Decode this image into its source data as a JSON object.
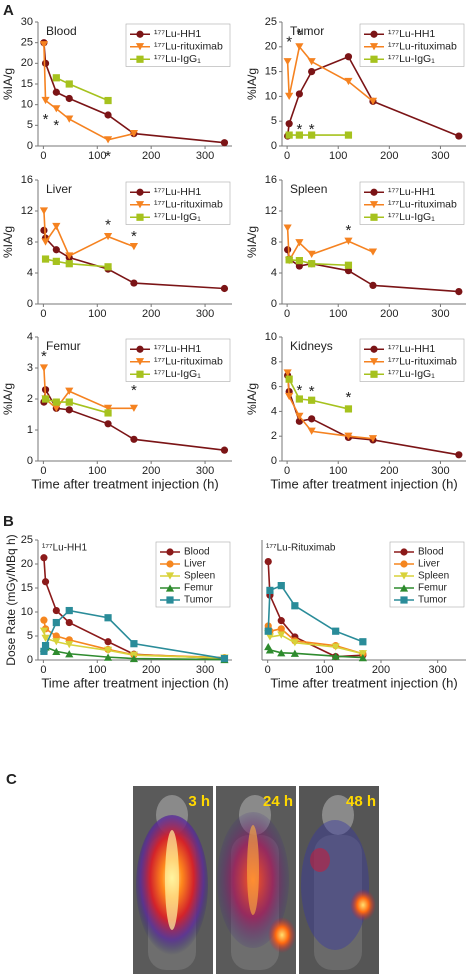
{
  "panel_labels": [
    "A",
    "B",
    "C"
  ],
  "image_labels": [
    "3 h",
    "24 h",
    "48 h"
  ],
  "chart_data": [
    {
      "type": "line",
      "title": "Blood",
      "ylabel": "%IA/g",
      "x": [
        1,
        4,
        24,
        48,
        120,
        168,
        336
      ],
      "xlim": [
        -10,
        350
      ],
      "xticks": [
        0,
        100,
        200,
        300
      ],
      "ylim": [
        0,
        30
      ],
      "yticks": [
        0,
        5,
        10,
        15,
        20,
        25,
        30
      ],
      "series": [
        {
          "name": "¹⁷⁷Lu-HH1",
          "color": "#7b1416",
          "marker": "circle",
          "values": [
            25,
            20,
            13,
            11.5,
            7.5,
            3,
            0.8
          ]
        },
        {
          "name": "¹⁷⁷Lu-rituximab",
          "color": "#f58220",
          "marker": "triangle-down",
          "values": [
            24.5,
            11,
            9,
            6.5,
            1.5,
            3,
            null
          ]
        },
        {
          "name": "¹⁷⁷Lu-IgG₁",
          "color": "#a6c21e",
          "marker": "square",
          "values": [
            null,
            null,
            16.5,
            15,
            11,
            null,
            null
          ]
        }
      ],
      "annotations": [
        {
          "text": "*",
          "x": 4,
          "y": 7
        },
        {
          "text": "*",
          "x": 24,
          "y": 5.5
        },
        {
          "text": "*",
          "x": 120,
          "y": -2
        }
      ]
    },
    {
      "type": "line",
      "title": "Tumor",
      "ylabel": "%IA/g",
      "x": [
        1,
        4,
        24,
        48,
        120,
        168,
        336
      ],
      "xlim": [
        -10,
        350
      ],
      "xticks": [
        0,
        100,
        200,
        300
      ],
      "ylim": [
        0,
        25
      ],
      "yticks": [
        0,
        5,
        10,
        15,
        20,
        25
      ],
      "series": [
        {
          "name": "¹⁷⁷Lu-HH1",
          "color": "#7b1416",
          "marker": "circle",
          "values": [
            2,
            4.5,
            10.5,
            15,
            18,
            9,
            2
          ]
        },
        {
          "name": "¹⁷⁷Lu-rituximab",
          "color": "#f58220",
          "marker": "triangle-down",
          "values": [
            17,
            10,
            20,
            17,
            13,
            9,
            null
          ]
        },
        {
          "name": "¹⁷⁷Lu-IgG₁",
          "color": "#a6c21e",
          "marker": "square",
          "values": [
            null,
            2.2,
            2.2,
            2.2,
            2.2,
            null,
            null
          ]
        }
      ],
      "annotations": [
        {
          "text": "*",
          "x": 4,
          "y": 21.5
        },
        {
          "text": "*",
          "x": 24,
          "y": 23
        },
        {
          "text": "*",
          "x": 24,
          "y": 3.8
        },
        {
          "text": "*",
          "x": 48,
          "y": 3.8
        }
      ]
    },
    {
      "type": "line",
      "title": "Liver",
      "ylabel": "%IA/g",
      "x": [
        1,
        4,
        24,
        48,
        120,
        168,
        336
      ],
      "xlim": [
        -10,
        350
      ],
      "xticks": [
        0,
        100,
        200,
        300
      ],
      "ylim": [
        0,
        16
      ],
      "yticks": [
        0,
        4,
        8,
        12,
        16
      ],
      "series": [
        {
          "name": "¹⁷⁷Lu-HH1",
          "color": "#7b1416",
          "marker": "circle",
          "values": [
            9.5,
            8.5,
            7,
            6,
            4.5,
            2.7,
            2
          ]
        },
        {
          "name": "¹⁷⁷Lu-rituximab",
          "color": "#f58220",
          "marker": "triangle-down",
          "values": [
            12,
            8,
            10,
            6.2,
            8.7,
            7.4,
            null
          ]
        },
        {
          "name": "¹⁷⁷Lu-IgG₁",
          "color": "#a6c21e",
          "marker": "square",
          "values": [
            null,
            5.8,
            5.5,
            5.2,
            4.8,
            null,
            null
          ]
        }
      ],
      "annotations": [
        {
          "text": "*",
          "x": 120,
          "y": 10.5
        },
        {
          "text": "*",
          "x": 168,
          "y": 9
        }
      ]
    },
    {
      "type": "line",
      "title": "Spleen",
      "ylabel": "%IA/g",
      "x": [
        1,
        4,
        24,
        48,
        120,
        168,
        336
      ],
      "xlim": [
        -10,
        350
      ],
      "xticks": [
        0,
        100,
        200,
        300
      ],
      "ylim": [
        0,
        16
      ],
      "yticks": [
        0,
        4,
        8,
        12,
        16
      ],
      "series": [
        {
          "name": "¹⁷⁷Lu-HH1",
          "color": "#7b1416",
          "marker": "circle",
          "values": [
            7,
            5.8,
            4.9,
            5.2,
            4.3,
            2.4,
            1.6
          ]
        },
        {
          "name": "¹⁷⁷Lu-rituximab",
          "color": "#f58220",
          "marker": "triangle-down",
          "values": [
            9.8,
            5.6,
            7.9,
            6.4,
            8.1,
            6.7,
            null
          ]
        },
        {
          "name": "¹⁷⁷Lu-IgG₁",
          "color": "#a6c21e",
          "marker": "square",
          "values": [
            null,
            5.7,
            5.6,
            5.2,
            5,
            null,
            null
          ]
        }
      ],
      "annotations": [
        {
          "text": "*",
          "x": 120,
          "y": 9.8
        }
      ]
    },
    {
      "type": "line",
      "title": "Femur",
      "ylabel": "%IA/g",
      "xlabel": "Time after treatment injection (h)",
      "x": [
        1,
        4,
        24,
        48,
        120,
        168,
        336
      ],
      "xlim": [
        -10,
        350
      ],
      "xticks": [
        0,
        100,
        200,
        300
      ],
      "ylim": [
        0,
        4
      ],
      "yticks": [
        0,
        1,
        2,
        3,
        4
      ],
      "series": [
        {
          "name": "¹⁷⁷Lu-HH1",
          "color": "#7b1416",
          "marker": "circle",
          "values": [
            1.9,
            2.3,
            1.7,
            1.65,
            1.2,
            0.7,
            0.35
          ]
        },
        {
          "name": "¹⁷⁷Lu-rituximab",
          "color": "#f58220",
          "marker": "triangle-down",
          "values": [
            3,
            2,
            1.7,
            2.25,
            1.7,
            1.7,
            null
          ]
        },
        {
          "name": "¹⁷⁷Lu-IgG₁",
          "color": "#a6c21e",
          "marker": "square",
          "values": [
            null,
            2,
            1.9,
            1.9,
            1.55,
            null,
            null
          ]
        }
      ],
      "annotations": [
        {
          "text": "*",
          "x": 1,
          "y": 3.45
        },
        {
          "text": "*",
          "x": 168,
          "y": 2.35
        }
      ]
    },
    {
      "type": "line",
      "title": "Kidneys",
      "ylabel": "%IA/g",
      "xlabel": "Time after treatment injection (h)",
      "x": [
        1,
        4,
        24,
        48,
        120,
        168,
        336
      ],
      "xlim": [
        -10,
        350
      ],
      "xticks": [
        0,
        100,
        200,
        300
      ],
      "ylim": [
        0,
        10
      ],
      "yticks": [
        0,
        2,
        4,
        6,
        8,
        10
      ],
      "series": [
        {
          "name": "¹⁷⁷Lu-HH1",
          "color": "#7b1416",
          "marker": "circle",
          "values": [
            6.9,
            5.6,
            3.2,
            3.4,
            1.9,
            1.7,
            0.5
          ]
        },
        {
          "name": "¹⁷⁷Lu-rituximab",
          "color": "#f58220",
          "marker": "triangle-down",
          "values": [
            7.1,
            5.2,
            3.6,
            2.4,
            2,
            1.8,
            null
          ]
        },
        {
          "name": "¹⁷⁷Lu-IgG₁",
          "color": "#a6c21e",
          "marker": "square",
          "values": [
            null,
            6.6,
            5,
            4.9,
            4.2,
            null,
            null
          ]
        }
      ],
      "annotations": [
        {
          "text": "*",
          "x": 24,
          "y": 5.9
        },
        {
          "text": "*",
          "x": 48,
          "y": 5.8
        },
        {
          "text": "*",
          "x": 120,
          "y": 5.3
        }
      ]
    },
    {
      "type": "line",
      "title": "¹⁷⁷Lu-HH1",
      "ylabel": "Dose Rate (mGy/MBq h)",
      "xlabel": "Time after treatment injection (h)",
      "x": [
        1,
        4,
        24,
        48,
        120,
        168,
        336
      ],
      "xlim": [
        -10,
        350
      ],
      "xticks": [
        0,
        100,
        200,
        300
      ],
      "ylim": [
        0,
        25
      ],
      "yticks": [
        0,
        5,
        10,
        15,
        20,
        25
      ],
      "series": [
        {
          "name": "Blood",
          "color": "#8b1a1a",
          "marker": "circle",
          "values": [
            21.3,
            16.3,
            10.3,
            7.8,
            3.8,
            1.2,
            0.3
          ]
        },
        {
          "name": "Liver",
          "color": "#f5861f",
          "marker": "circle",
          "values": [
            8.3,
            6.5,
            5,
            4.2,
            2.2,
            1.1,
            0.5
          ]
        },
        {
          "name": "Spleen",
          "color": "#d8d23a",
          "marker": "triangle-down",
          "values": [
            6,
            4.5,
            3.8,
            3.2,
            2,
            1,
            0.4
          ]
        },
        {
          "name": "Femur",
          "color": "#2e8b2e",
          "marker": "triangle-up",
          "values": [
            2.5,
            2.7,
            1.8,
            1.3,
            0.6,
            0.3,
            0.1
          ]
        },
        {
          "name": "Tumor",
          "color": "#2a8c99",
          "marker": "square",
          "values": [
            1.8,
            3,
            7.8,
            10.3,
            8.8,
            3.4,
            0.3
          ]
        }
      ]
    },
    {
      "type": "line",
      "title": "¹⁷⁷Lu-Rituximab",
      "xlabel": "Time after treatment injection (h)",
      "x": [
        1,
        4,
        24,
        48,
        120,
        168
      ],
      "xlim": [
        -10,
        350
      ],
      "xticks": [
        0,
        100,
        200,
        300
      ],
      "ylim": [
        0,
        25
      ],
      "series": [
        {
          "name": "Blood",
          "color": "#8b1a1a",
          "marker": "circle",
          "values": [
            20.5,
            13.5,
            8.2,
            4.8,
            0.7,
            1
          ]
        },
        {
          "name": "Liver",
          "color": "#f5861f",
          "marker": "circle",
          "values": [
            7.1,
            6,
            6.5,
            4,
            3,
            1.3
          ]
        },
        {
          "name": "Spleen",
          "color": "#d8d23a",
          "marker": "triangle-down",
          "values": [
            5.5,
            4.8,
            5.2,
            3.6,
            2.7,
            1.3
          ]
        },
        {
          "name": "Femur",
          "color": "#2e8b2e",
          "marker": "triangle-up",
          "values": [
            2.8,
            2.1,
            1.5,
            1.4,
            0.8,
            0.5
          ]
        },
        {
          "name": "Tumor",
          "color": "#2a8c99",
          "marker": "square",
          "values": [
            6,
            14.5,
            15.5,
            11.3,
            6,
            3.8
          ]
        }
      ]
    }
  ]
}
